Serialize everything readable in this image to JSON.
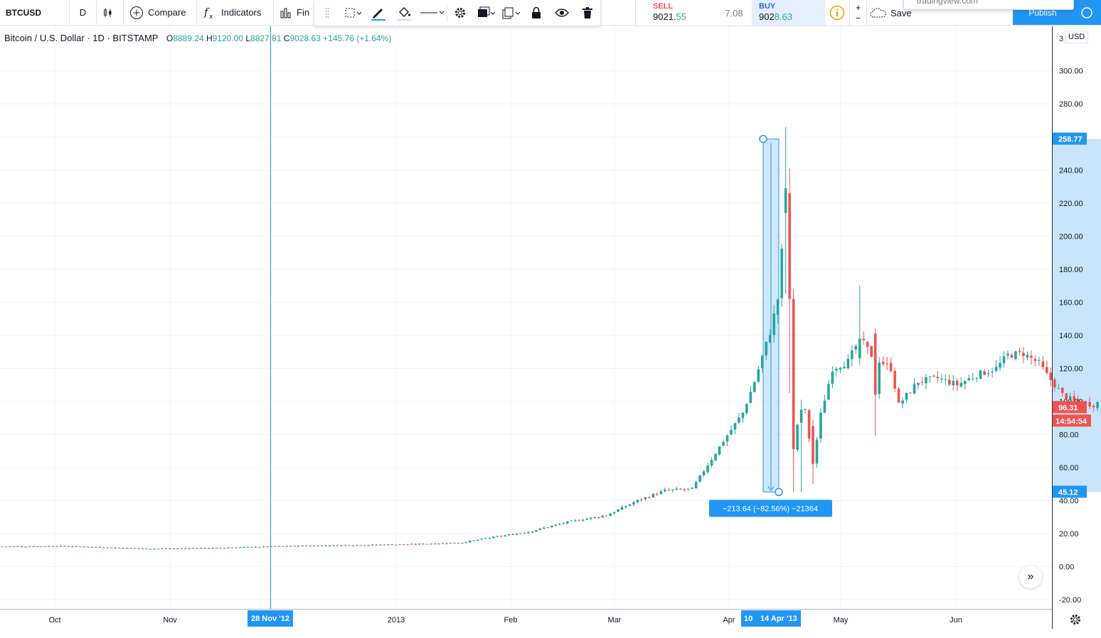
{
  "toolbar": {
    "symbol": "BTCUSD",
    "interval": "D",
    "compare_label": "Compare",
    "indicators_label": "Indicators",
    "fin_label": "Fin",
    "save_label": "Save",
    "publish_label": "Publish",
    "tooltip_text": "tradingview.com"
  },
  "trade": {
    "sell_label": "SELL",
    "sell_price_main": "9021.",
    "sell_price_frac": "55",
    "spread": "7.08",
    "buy_label": "BUY",
    "buy_price_main": "902",
    "buy_price_frac": "8.63"
  },
  "legend": {
    "title": "Bitcoin / U.S. Dollar · 1D · BITSTAMP",
    "o_label": "O",
    "o": "8889.24",
    "h_label": "H",
    "h": "9120.00",
    "l_label": "L",
    "l": "8827.81",
    "c_label": "C",
    "c": "9028.63",
    "change": "+145.76 (+1.64%)"
  },
  "axis": {
    "currency": "USD",
    "y_ticks": [
      "300.00",
      "280.00",
      "260.00",
      "240.00",
      "220.00",
      "200.00",
      "180.00",
      "160.00",
      "140.00",
      "120.00",
      "100.00",
      "80.00",
      "60.00",
      "40.00",
      "20.00",
      "0.00",
      "-20.00"
    ],
    "x_ticks": [
      "Oct",
      "Nov",
      "2013",
      "Feb",
      "Mar",
      "Apr",
      "May",
      "Jun"
    ],
    "top_label": "3"
  },
  "labels": {
    "crosshair_date": "28 Nov '12",
    "range_start": "10",
    "range_end": "14 Apr '13",
    "measure_top": "258.77",
    "measure_bottom": "45.12",
    "last_price": "96.31",
    "countdown": "14:54:54",
    "measure_text": "−213.64 (−82.56%) −21364"
  },
  "colors": {
    "up": "#26a69a",
    "down": "#ef5350",
    "accent": "#2196f3",
    "measure_fill": "#bbdefb",
    "grid": "#f0f3fa"
  },
  "chart_data": {
    "type": "candlestick",
    "title": "Bitcoin / U.S. Dollar · 1D · BITSTAMP",
    "ylabel": "USD",
    "ylim": [
      -25,
      310
    ],
    "x_ticks": [
      "Oct",
      "Nov",
      "2013",
      "Feb",
      "Mar",
      "Apr",
      "May",
      "Jun"
    ],
    "anchors": [
      {
        "d": 0,
        "v": 12.1
      },
      {
        "d": 15,
        "v": 12.4
      },
      {
        "d": 25,
        "v": 11.7
      },
      {
        "d": 38,
        "v": 10.8
      },
      {
        "d": 55,
        "v": 11.3
      },
      {
        "d": 75,
        "v": 12.5
      },
      {
        "d": 105,
        "v": 13.5
      },
      {
        "d": 118,
        "v": 14.5
      },
      {
        "d": 125,
        "v": 17.5
      },
      {
        "d": 135,
        "v": 21
      },
      {
        "d": 145,
        "v": 27
      },
      {
        "d": 155,
        "v": 31
      },
      {
        "d": 163,
        "v": 40
      },
      {
        "d": 170,
        "v": 46
      },
      {
        "d": 177,
        "v": 47
      },
      {
        "d": 180,
        "v": 58
      },
      {
        "d": 185,
        "v": 76
      },
      {
        "d": 190,
        "v": 93
      },
      {
        "d": 193,
        "v": 112
      },
      {
        "d": 197,
        "v": 142
      },
      {
        "d": 199,
        "v": 162
      },
      {
        "d": 200,
        "v": 190
      },
      {
        "d": 201,
        "v": 229
      },
      {
        "d": 202,
        "v": 162
      },
      {
        "d": 203,
        "v": 71
      },
      {
        "d": 204,
        "v": 86
      },
      {
        "d": 206,
        "v": 94
      },
      {
        "d": 208,
        "v": 62
      },
      {
        "d": 210,
        "v": 92
      },
      {
        "d": 213,
        "v": 120
      },
      {
        "d": 217,
        "v": 124
      },
      {
        "d": 220,
        "v": 138
      },
      {
        "d": 223,
        "v": 128
      },
      {
        "d": 228,
        "v": 120
      },
      {
        "d": 230,
        "v": 98
      },
      {
        "d": 235,
        "v": 112
      },
      {
        "d": 240,
        "v": 114
      },
      {
        "d": 245,
        "v": 110
      },
      {
        "d": 250,
        "v": 116
      },
      {
        "d": 255,
        "v": 120
      },
      {
        "d": 258,
        "v": 128
      },
      {
        "d": 262,
        "v": 129
      },
      {
        "d": 266,
        "v": 123
      },
      {
        "d": 268,
        "v": 116
      },
      {
        "d": 272,
        "v": 104
      },
      {
        "d": 275,
        "v": 100
      },
      {
        "d": 280,
        "v": 98
      },
      {
        "d": 285,
        "v": 104
      },
      {
        "d": 291,
        "v": 96.31
      }
    ],
    "highlights": [
      {
        "d": 201,
        "o": 214,
        "h": 266,
        "l": 165,
        "c": 229
      },
      {
        "d": 202,
        "o": 226,
        "h": 241,
        "l": 105,
        "c": 162
      },
      {
        "d": 203,
        "o": 162,
        "h": 168,
        "l": 45.1,
        "c": 71
      },
      {
        "d": 205,
        "o": 87,
        "h": 101,
        "l": 45.1,
        "c": 95
      },
      {
        "d": 208,
        "o": 85,
        "h": 89,
        "l": 50,
        "c": 62
      },
      {
        "d": 220,
        "o": 126,
        "h": 170,
        "l": 122,
        "c": 138
      },
      {
        "d": 224,
        "o": 141,
        "h": 144,
        "l": 79,
        "c": 104
      }
    ]
  }
}
